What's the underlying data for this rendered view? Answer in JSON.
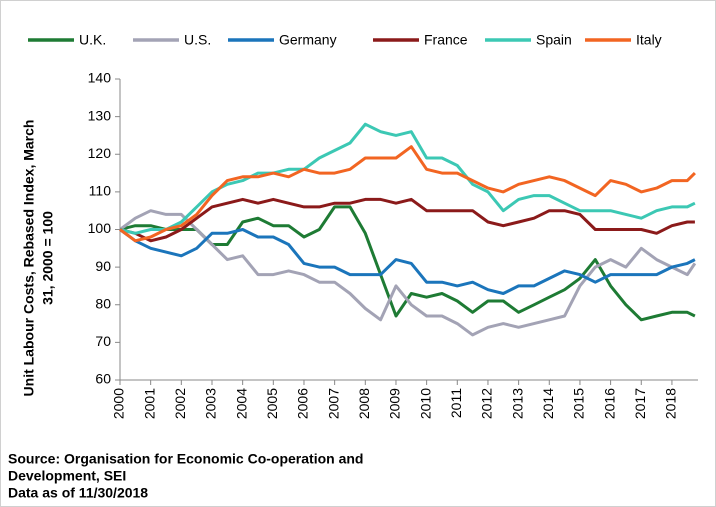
{
  "chart_data": {
    "type": "line",
    "ylabel": [
      "Unit Labour Costs, Rebased Index, March",
      "31, 2000 = 100"
    ],
    "notes": [
      "Source: Organisation for Economic Co-operation and",
      "Development, SEI",
      "Data as of 11/30/2018"
    ],
    "x": [
      2000,
      2000.5,
      2001,
      2001.5,
      2002,
      2002.5,
      2003,
      2003.5,
      2004,
      2004.5,
      2005,
      2005.5,
      2006,
      2006.5,
      2007,
      2007.5,
      2008,
      2008.5,
      2009,
      2009.5,
      2010,
      2010.5,
      2011,
      2011.5,
      2012,
      2012.5,
      2013,
      2013.5,
      2014,
      2014.5,
      2015,
      2015.5,
      2016,
      2016.5,
      2017,
      2017.5,
      2018,
      2018.5,
      2018.75
    ],
    "series": [
      {
        "name": "U.K.",
        "color": "#1e7b34",
        "values": [
          100,
          101,
          101,
          100,
          100,
          100,
          96,
          96,
          102,
          103,
          101,
          101,
          98,
          100,
          106,
          106,
          99,
          88,
          77,
          83,
          82,
          83,
          81,
          78,
          81,
          81,
          78,
          80,
          82,
          84,
          87,
          92,
          85,
          80,
          76,
          77,
          78,
          78,
          77
        ]
      },
      {
        "name": "U.S.",
        "color": "#a3a3b5",
        "values": [
          100,
          103,
          105,
          104,
          104,
          100,
          96,
          92,
          93,
          88,
          88,
          89,
          88,
          86,
          86,
          83,
          79,
          76,
          85,
          80,
          77,
          77,
          75,
          72,
          74,
          75,
          74,
          75,
          76,
          77,
          85,
          90,
          92,
          90,
          95,
          92,
          90,
          88,
          91
        ]
      },
      {
        "name": "Germany",
        "color": "#1b75bb",
        "values": [
          100,
          97,
          95,
          94,
          93,
          95,
          99,
          99,
          100,
          98,
          98,
          96,
          91,
          90,
          90,
          88,
          88,
          88,
          92,
          91,
          86,
          86,
          85,
          86,
          84,
          83,
          85,
          85,
          87,
          89,
          88,
          86,
          88,
          88,
          88,
          88,
          90,
          91,
          92
        ]
      },
      {
        "name": "France",
        "color": "#8b1a1a",
        "values": [
          100,
          99,
          97,
          98,
          100,
          103,
          106,
          107,
          108,
          107,
          108,
          107,
          106,
          106,
          107,
          107,
          108,
          108,
          107,
          108,
          105,
          105,
          105,
          105,
          102,
          101,
          102,
          103,
          105,
          105,
          104,
          100,
          100,
          100,
          100,
          99,
          101,
          102,
          102
        ]
      },
      {
        "name": "Spain",
        "color": "#3cc8b4",
        "values": [
          100,
          99,
          100,
          100,
          102,
          106,
          110,
          112,
          113,
          115,
          115,
          116,
          116,
          119,
          121,
          123,
          128,
          126,
          125,
          126,
          119,
          119,
          117,
          112,
          110,
          105,
          108,
          109,
          109,
          107,
          105,
          105,
          105,
          104,
          103,
          105,
          106,
          106,
          107
        ]
      },
      {
        "name": "Italy",
        "color": "#f26522",
        "values": [
          100,
          97,
          98,
          100,
          101,
          104,
          109,
          113,
          114,
          114,
          115,
          114,
          116,
          115,
          115,
          116,
          119,
          119,
          119,
          122,
          116,
          115,
          115,
          113,
          111,
          110,
          112,
          113,
          114,
          113,
          111,
          109,
          113,
          112,
          110,
          111,
          113,
          113,
          115
        ]
      }
    ],
    "xlim": [
      2000,
      2018.85
    ],
    "xticks": [
      2000,
      2001,
      2002,
      2003,
      2004,
      2005,
      2006,
      2007,
      2008,
      2009,
      2010,
      2011,
      2012,
      2013,
      2014,
      2015,
      2016,
      2017,
      2018
    ],
    "ylim": [
      60,
      140
    ],
    "yticks": [
      60,
      70,
      80,
      90,
      100,
      110,
      120,
      130,
      140
    ],
    "legend": "top"
  }
}
